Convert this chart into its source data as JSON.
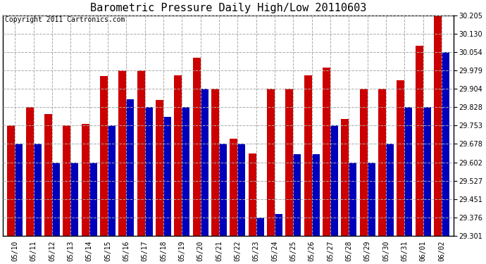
{
  "title": "Barometric Pressure Daily High/Low 20110603",
  "copyright": "Copyright 2011 Cartronics.com",
  "dates": [
    "05/10",
    "05/11",
    "05/12",
    "05/13",
    "05/14",
    "05/15",
    "05/16",
    "05/17",
    "05/18",
    "05/19",
    "05/20",
    "05/21",
    "05/22",
    "05/23",
    "05/24",
    "05/25",
    "05/26",
    "05/27",
    "05/28",
    "05/29",
    "05/30",
    "05/31",
    "06/01",
    "06/02"
  ],
  "highs": [
    29.753,
    29.828,
    29.8,
    29.753,
    29.76,
    29.955,
    29.979,
    29.979,
    29.858,
    29.96,
    30.03,
    29.904,
    29.7,
    29.64,
    29.904,
    29.904,
    29.958,
    29.99,
    29.78,
    29.904,
    29.904,
    29.94,
    30.08,
    30.205
  ],
  "lows": [
    29.678,
    29.678,
    29.602,
    29.602,
    29.602,
    29.753,
    29.86,
    29.828,
    29.79,
    29.828,
    29.904,
    29.678,
    29.678,
    29.376,
    29.391,
    29.635,
    29.635,
    29.753,
    29.602,
    29.602,
    29.678,
    29.828,
    29.828,
    30.054
  ],
  "ymin": 29.301,
  "ymax": 30.205,
  "yticks": [
    29.301,
    29.376,
    29.451,
    29.527,
    29.602,
    29.678,
    29.753,
    29.828,
    29.904,
    29.979,
    30.054,
    30.13,
    30.205
  ],
  "high_color": "#cc0000",
  "low_color": "#0000bb",
  "bg_color": "#ffffff",
  "grid_color": "#aaaaaa",
  "title_fontsize": 11,
  "copyright_fontsize": 7
}
